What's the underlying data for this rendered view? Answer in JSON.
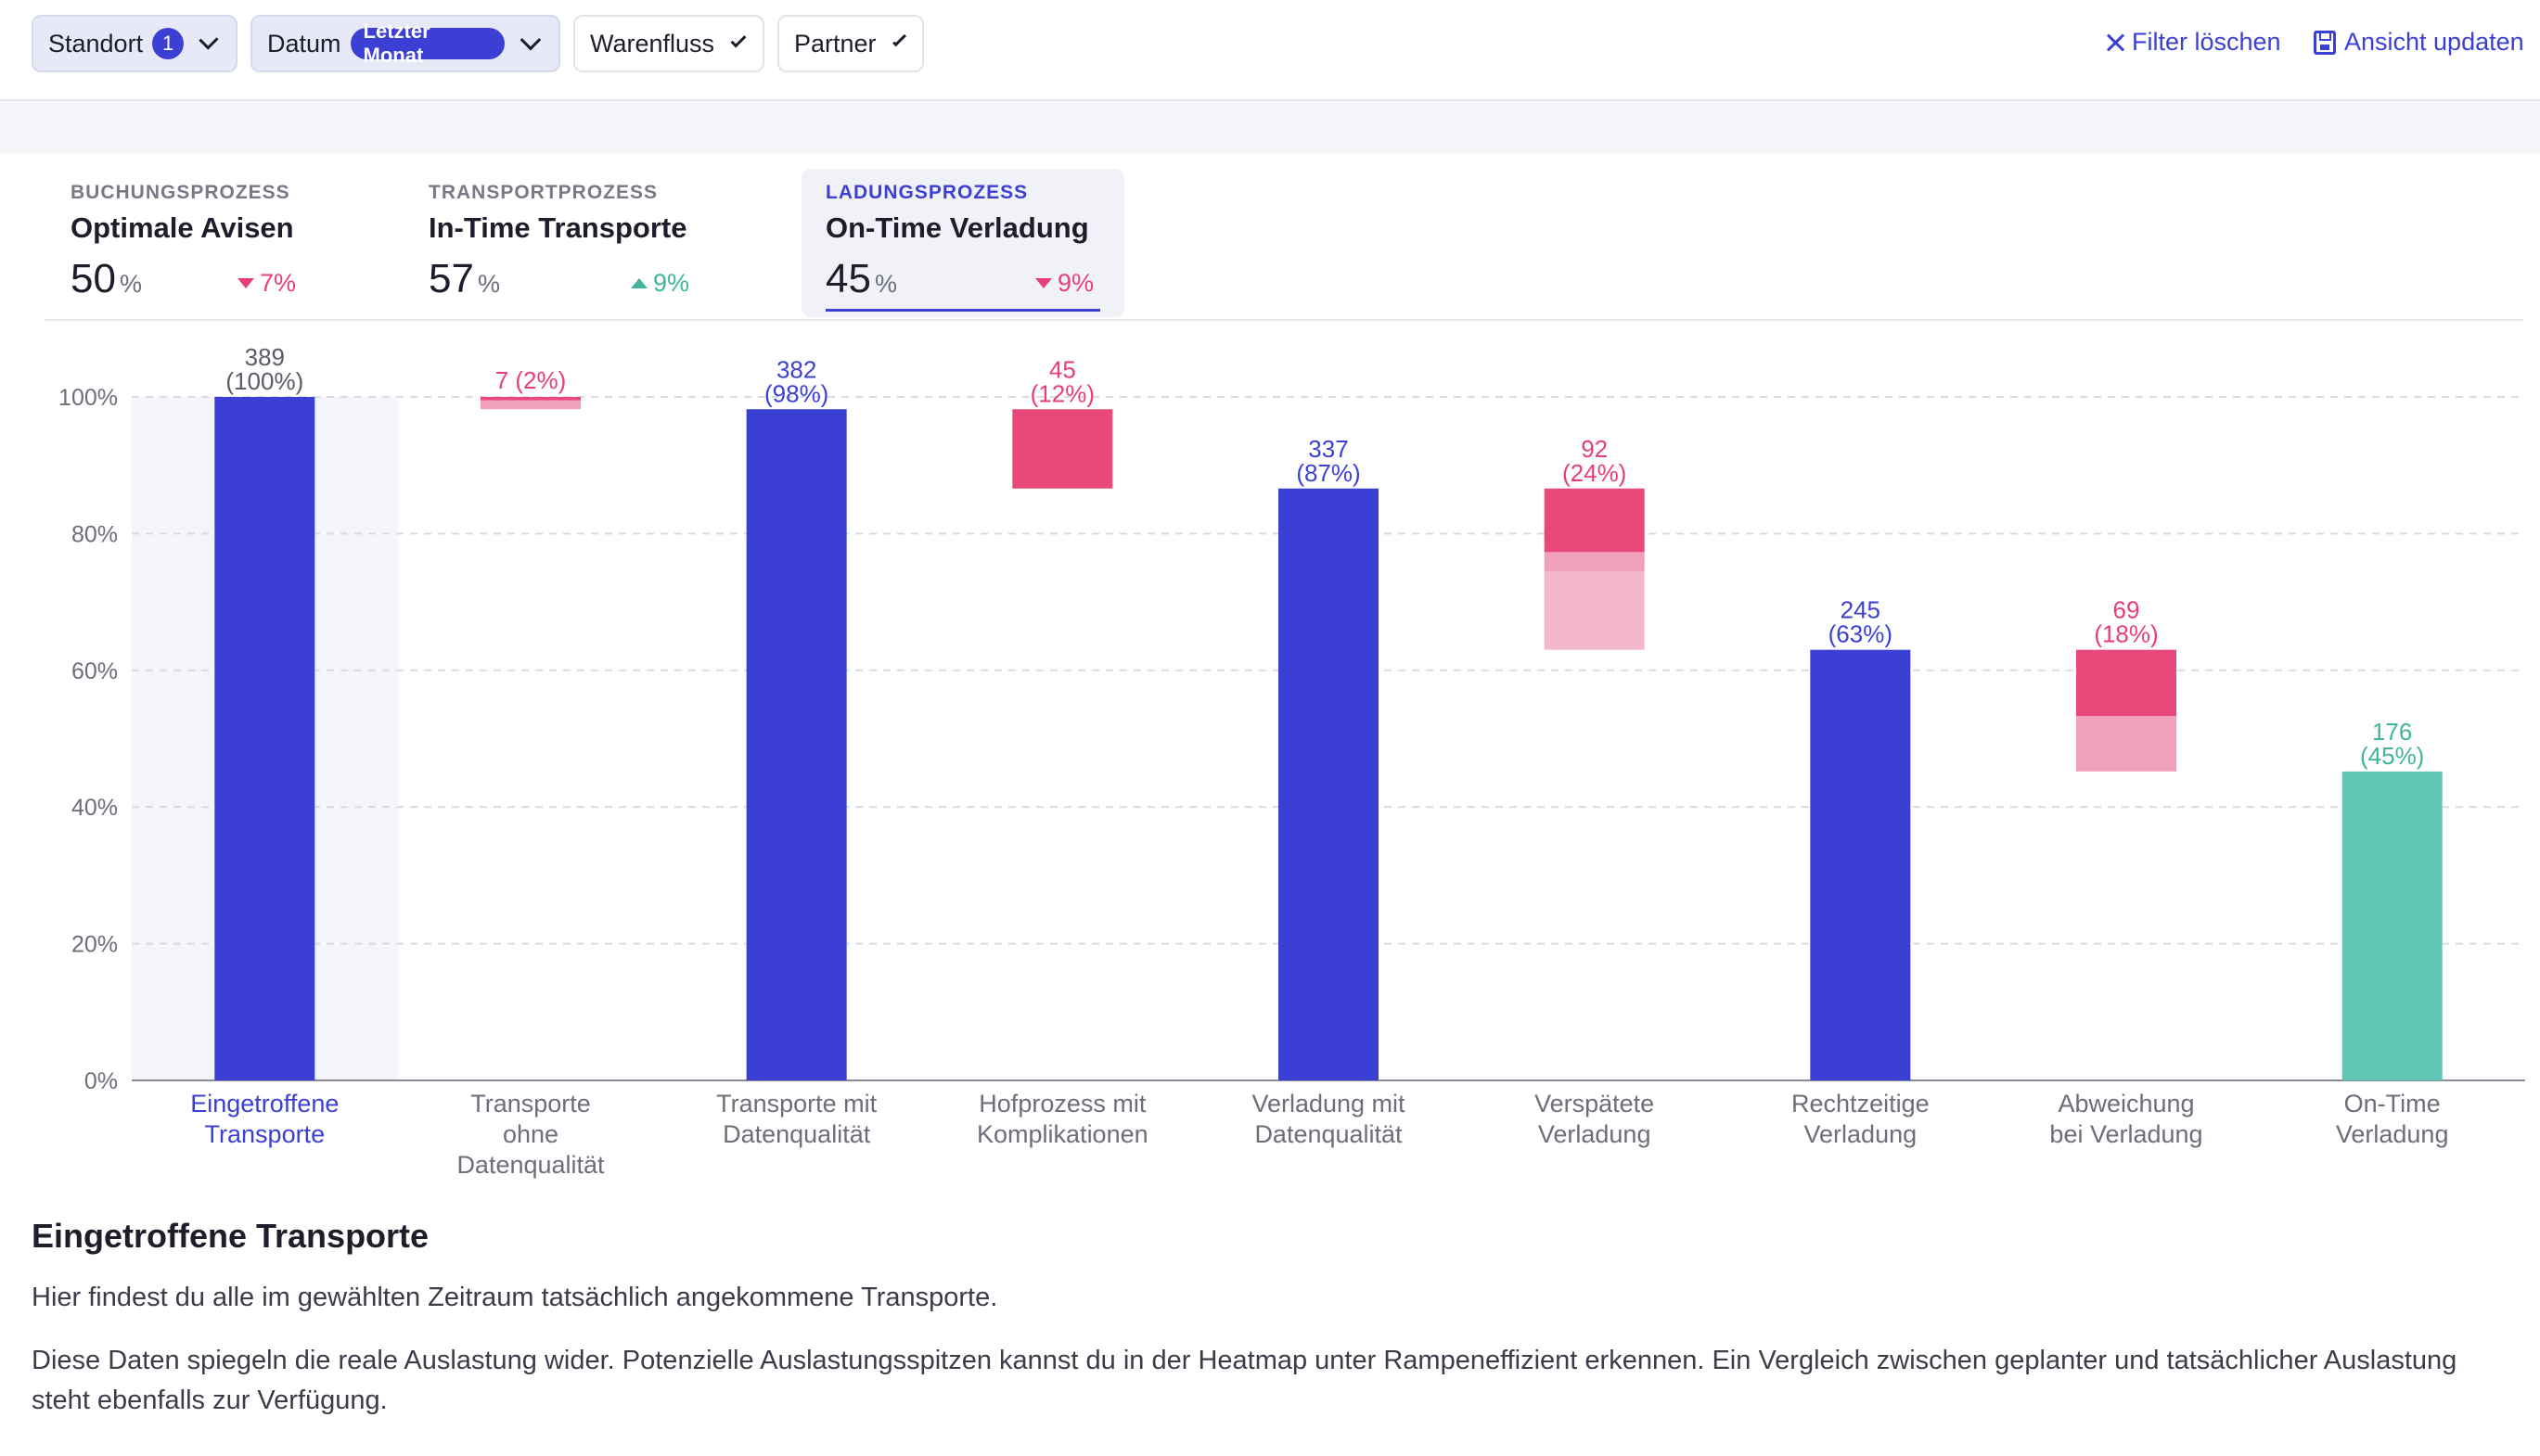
{
  "filters": {
    "standort": {
      "label": "Standort",
      "badge": "1"
    },
    "datum": {
      "label": "Datum",
      "badge": "Letzter Monat"
    },
    "warenfluss": {
      "label": "Warenfluss"
    },
    "partner": {
      "label": "Partner"
    },
    "clear_label": "Filter löschen",
    "update_label": "Ansicht updaten"
  },
  "kpis": [
    {
      "category": "BUCHUNGSPROZESS",
      "name": "Optimale Avisen",
      "value": "50",
      "unit": "%",
      "delta": "7%",
      "trend": "down"
    },
    {
      "category": "TRANSPORTPROZESS",
      "name": "In-Time Transporte",
      "value": "57",
      "unit": "%",
      "delta": "9%",
      "trend": "up"
    },
    {
      "category": "LADUNGSPROZESS",
      "name": "On-Time Verladung",
      "value": "45",
      "unit": "%",
      "delta": "9%",
      "trend": "down"
    }
  ],
  "colors": {
    "accent": "#3b3fd4",
    "negative": "#e8487a",
    "negative_light": "#f0a0bc",
    "negative_lighter": "#f5b8cb",
    "positive": "#5fc6b6",
    "positive_text": "#3fb59a",
    "highlight_bg": "#f4f5fa"
  },
  "chart_data": {
    "type": "bar",
    "subtype": "waterfall",
    "categories": [
      [
        "Eingetroffene",
        "Transporte"
      ],
      [
        "Transporte",
        "ohne",
        "Datenqualität"
      ],
      [
        "Transporte mit",
        "Datenqualität"
      ],
      [
        "Hofprozess mit",
        "Komplikationen"
      ],
      [
        "Verladung mit",
        "Datenqualität"
      ],
      [
        "Verspätete",
        "Verladung"
      ],
      [
        "Rechtzeitige",
        "Verladung"
      ],
      [
        "Abweichung",
        "bei Verladung"
      ],
      [
        "On-Time",
        "Verladung"
      ]
    ],
    "bars": [
      {
        "kind": "total",
        "count": "389",
        "pct_label": "(100%)",
        "from": 0,
        "to": 100,
        "segments": [
          {
            "from": 0,
            "to": 100,
            "tone": "accent"
          }
        ]
      },
      {
        "kind": "loss",
        "count": "7",
        "pct_label": "(2%)",
        "from": 98.2,
        "to": 100,
        "segments": [
          {
            "from": 98.2,
            "to": 99.5,
            "tone": "negative_light"
          },
          {
            "from": 99.5,
            "to": 100,
            "tone": "negative"
          }
        ]
      },
      {
        "kind": "total",
        "count": "382",
        "pct_label": "(98%)",
        "from": 0,
        "to": 98.2,
        "segments": [
          {
            "from": 0,
            "to": 98.2,
            "tone": "accent"
          }
        ]
      },
      {
        "kind": "loss",
        "count": "45",
        "pct_label": "(12%)",
        "from": 86.6,
        "to": 98.2,
        "segments": [
          {
            "from": 86.6,
            "to": 98.2,
            "tone": "negative"
          }
        ]
      },
      {
        "kind": "total",
        "count": "337",
        "pct_label": "(87%)",
        "from": 0,
        "to": 86.6,
        "segments": [
          {
            "from": 0,
            "to": 86.6,
            "tone": "accent"
          }
        ]
      },
      {
        "kind": "loss",
        "count": "92",
        "pct_label": "(24%)",
        "from": 63,
        "to": 86.6,
        "segments": [
          {
            "from": 63,
            "to": 74.5,
            "tone": "negative_lighter"
          },
          {
            "from": 74.5,
            "to": 77.3,
            "tone": "negative_light"
          },
          {
            "from": 77.3,
            "to": 86.6,
            "tone": "negative"
          }
        ]
      },
      {
        "kind": "total",
        "count": "245",
        "pct_label": "(63%)",
        "from": 0,
        "to": 63,
        "segments": [
          {
            "from": 0,
            "to": 63,
            "tone": "accent"
          }
        ]
      },
      {
        "kind": "loss",
        "count": "69",
        "pct_label": "(18%)",
        "from": 45.2,
        "to": 63,
        "segments": [
          {
            "from": 45.2,
            "to": 53.3,
            "tone": "negative_light"
          },
          {
            "from": 53.3,
            "to": 63,
            "tone": "negative"
          }
        ]
      },
      {
        "kind": "result",
        "count": "176",
        "pct_label": "(45%)",
        "from": 0,
        "to": 45.2,
        "segments": [
          {
            "from": 0,
            "to": 45.2,
            "tone": "positive"
          }
        ]
      }
    ],
    "selected_index": 0,
    "yticks": [
      "0%",
      "20%",
      "40%",
      "60%",
      "80%",
      "100%"
    ],
    "ylim": [
      0,
      100
    ],
    "grid": true
  },
  "description": {
    "title": "Eingetroffene Transporte",
    "p1": "Hier findest du alle im gewählten Zeitraum tatsächlich angekommene Transporte.",
    "p2": "Diese Daten spiegeln die reale Auslastung wider. Potenzielle Auslastungsspitzen kannst du in der Heatmap unter Rampeneffizient erkennen. Ein Vergleich zwischen geplanter und tatsächlicher Auslastung steht ebenfalls zur Verfügung."
  }
}
